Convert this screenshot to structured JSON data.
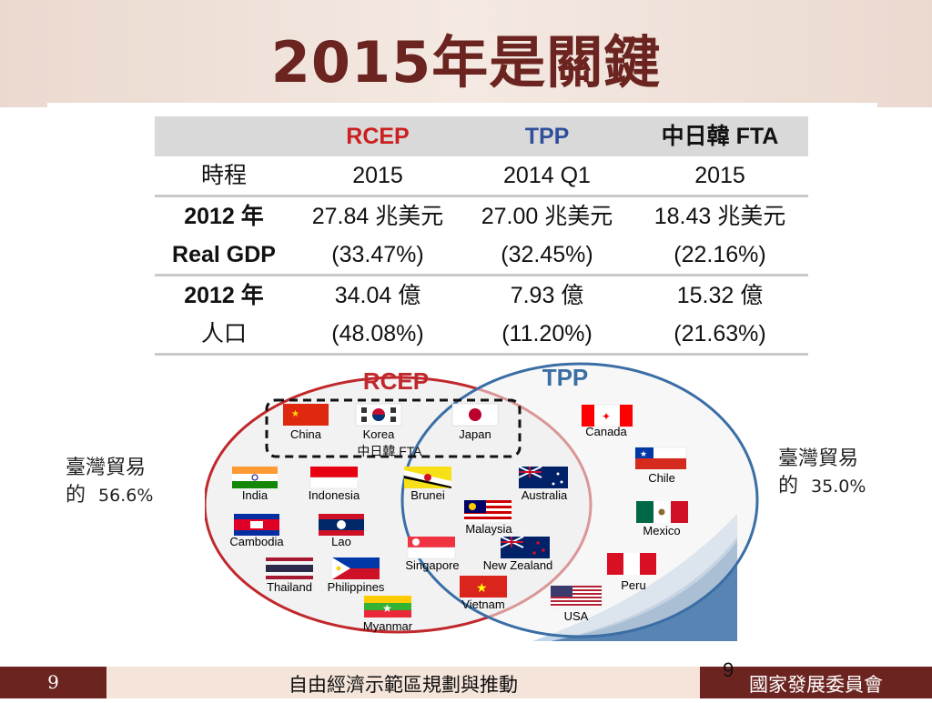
{
  "title": "2015年是關鍵",
  "table": {
    "headers": [
      "",
      "RCEP",
      "TPP",
      "中日韓 FTA"
    ],
    "header_colors": [
      "#111111",
      "#cc1f1f",
      "#2f4f9a",
      "#111111"
    ],
    "rows": [
      [
        "時程",
        "2015",
        "2014 Q1",
        "2015"
      ],
      [
        "2012 年",
        "27.84 兆美元",
        "27.00 兆美元",
        "18.43 兆美元"
      ],
      [
        "Real GDP",
        "(33.47%)",
        "(32.45%)",
        "(22.16%)"
      ],
      [
        "2012 年",
        "34.04 億",
        "7.93 億",
        "15.32 億"
      ],
      [
        "人口",
        "(48.08%)",
        "(11.20%)",
        "(21.63%)"
      ]
    ]
  },
  "venn": {
    "rcep_label": "RCEP",
    "tpp_label": "TPP",
    "fta_label": "中日韓 FTA",
    "rcep_color": "#c0282c",
    "tpp_color": "#3a6ea5",
    "countries": {
      "china": "China",
      "korea": "Korea",
      "japan": "Japan",
      "india": "India",
      "indonesia": "Indonesia",
      "cambodia": "Cambodia",
      "lao": "Lao",
      "thailand": "Thailand",
      "philippines": "Philippines",
      "myanmar": "Myanmar",
      "brunei": "Brunei",
      "malaysia": "Malaysia",
      "singapore": "Singapore",
      "vietnam": "Vietnam",
      "australia": "Australia",
      "new_zealand": "New Zealand",
      "canada": "Canada",
      "chile": "Chile",
      "mexico": "Mexico",
      "peru": "Peru",
      "usa": "USA"
    }
  },
  "left_note": {
    "line1": "臺灣貿易",
    "line2_prefix": "的",
    "pct": "56.6%"
  },
  "right_note": {
    "line1": "臺灣貿易",
    "line2_prefix": "的",
    "pct": "35.0%"
  },
  "footer": {
    "page": "9",
    "center": "自由經濟示範區規劃與推動",
    "right": "國家發展委員會"
  },
  "page_number_overlay": "9"
}
